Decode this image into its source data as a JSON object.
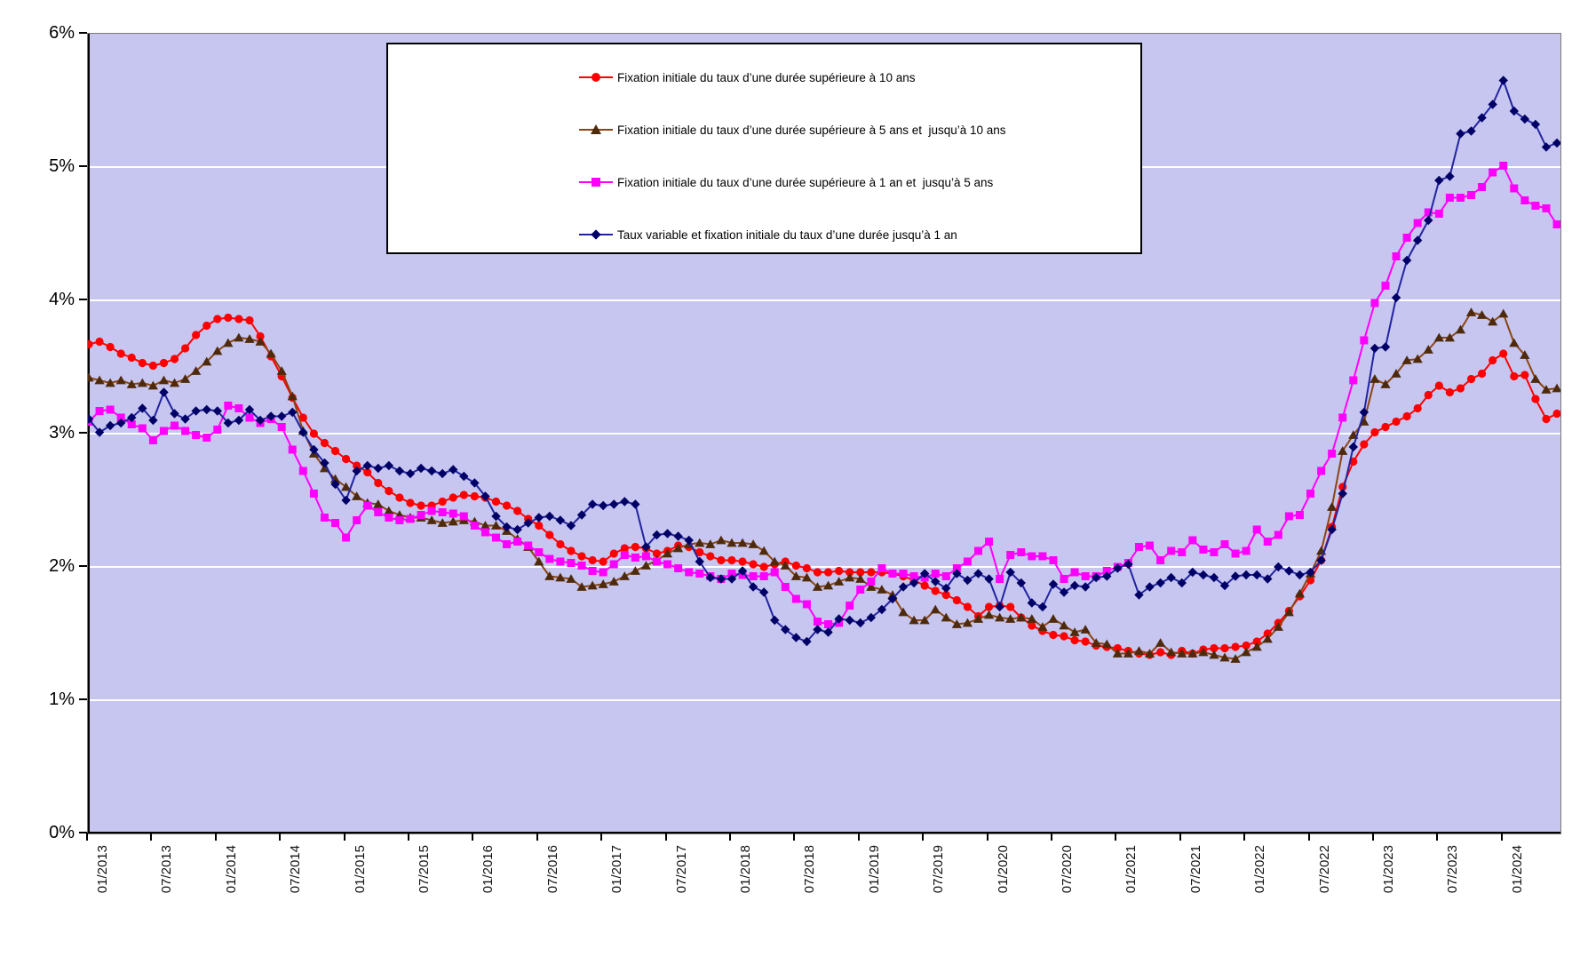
{
  "figure": {
    "background": "#FFFFFF"
  },
  "plot": {
    "background": "#C6C6F0",
    "border_color": "#7A7A7A",
    "axis_color": "#000000",
    "gridline_color": "#FFFFFF"
  },
  "chart_data": {
    "type": "line",
    "title": "",
    "xlabel": "",
    "ylabel": "",
    "x_frequency": "monthly",
    "x_start": "01/2013",
    "x_end": "06/2024",
    "x_tick_labels": [
      "01/2013",
      "07/2013",
      "01/2014",
      "07/2014",
      "01/2015",
      "07/2015",
      "01/2016",
      "07/2016",
      "01/2017",
      "07/2017",
      "01/2018",
      "07/2018",
      "01/2019",
      "07/2019",
      "01/2020",
      "07/2020",
      "01/2021",
      "07/2021",
      "01/2022",
      "07/2022",
      "01/2023",
      "07/2023",
      "01/2024"
    ],
    "y_tick_labels": [
      "6%",
      "5%",
      "4%",
      "3%",
      "2%",
      "1%",
      "0%"
    ],
    "ylim": [
      0,
      6
    ],
    "grid": "horizontal white gridlines at each 1%",
    "legend_position": "floating top-center, white box with black border",
    "series": [
      {
        "name": "Fixation initiale du taux d’une durée supérieure à 10 ans",
        "color": "#FF0000",
        "marker_color": "#FF0000",
        "marker": "circle",
        "values": [
          3.67,
          3.69,
          3.65,
          3.6,
          3.57,
          3.53,
          3.51,
          3.53,
          3.56,
          3.64,
          3.74,
          3.81,
          3.86,
          3.87,
          3.86,
          3.85,
          3.73,
          3.58,
          3.43,
          3.27,
          3.12,
          3.0,
          2.93,
          2.87,
          2.81,
          2.76,
          2.71,
          2.63,
          2.57,
          2.52,
          2.48,
          2.46,
          2.46,
          2.49,
          2.52,
          2.54,
          2.53,
          2.52,
          2.49,
          2.46,
          2.42,
          2.36,
          2.31,
          2.24,
          2.17,
          2.12,
          2.08,
          2.05,
          2.04,
          2.1,
          2.14,
          2.15,
          2.14,
          2.1,
          2.12,
          2.16,
          2.15,
          2.11,
          2.08,
          2.05,
          2.05,
          2.04,
          2.02,
          2.0,
          2.02,
          2.04,
          2.01,
          1.99,
          1.96,
          1.96,
          1.97,
          1.96,
          1.96,
          1.96,
          1.96,
          1.95,
          1.93,
          1.9,
          1.86,
          1.82,
          1.79,
          1.75,
          1.7,
          1.63,
          1.7,
          1.71,
          1.7,
          1.62,
          1.56,
          1.52,
          1.49,
          1.48,
          1.45,
          1.44,
          1.41,
          1.4,
          1.39,
          1.37,
          1.35,
          1.34,
          1.36,
          1.34,
          1.37,
          1.35,
          1.38,
          1.39,
          1.39,
          1.4,
          1.41,
          1.44,
          1.5,
          1.58,
          1.67,
          1.78,
          1.9,
          2.05,
          2.3,
          2.6,
          2.79,
          2.92,
          3.01,
          3.05,
          3.09,
          3.13,
          3.19,
          3.29,
          3.36,
          3.31,
          3.34,
          3.41,
          3.45,
          3.55,
          3.6,
          3.43,
          3.44,
          3.26,
          3.11,
          3.15
        ]
      },
      {
        "name": "Fixation initiale du taux d’une durée supérieure à 5 ans et  jusqu’à 10 ans",
        "color": "#8B4513",
        "marker_color": "#4E2A0C",
        "marker": "triangle",
        "values": [
          3.42,
          3.4,
          3.38,
          3.4,
          3.37,
          3.38,
          3.36,
          3.4,
          3.38,
          3.41,
          3.47,
          3.54,
          3.62,
          3.68,
          3.72,
          3.71,
          3.69,
          3.6,
          3.47,
          3.28,
          3.02,
          2.85,
          2.74,
          2.66,
          2.6,
          2.53,
          2.48,
          2.47,
          2.42,
          2.39,
          2.37,
          2.37,
          2.35,
          2.33,
          2.34,
          2.35,
          2.34,
          2.31,
          2.31,
          2.27,
          2.21,
          2.15,
          2.04,
          1.93,
          1.92,
          1.91,
          1.85,
          1.86,
          1.87,
          1.89,
          1.93,
          1.97,
          2.01,
          2.05,
          2.1,
          2.14,
          2.17,
          2.18,
          2.17,
          2.2,
          2.18,
          2.18,
          2.17,
          2.12,
          2.04,
          2.01,
          1.93,
          1.92,
          1.85,
          1.86,
          1.89,
          1.92,
          1.91,
          1.85,
          1.83,
          1.79,
          1.66,
          1.6,
          1.6,
          1.68,
          1.62,
          1.57,
          1.58,
          1.61,
          1.64,
          1.62,
          1.61,
          1.62,
          1.61,
          1.55,
          1.61,
          1.56,
          1.51,
          1.53,
          1.43,
          1.42,
          1.35,
          1.35,
          1.37,
          1.35,
          1.43,
          1.36,
          1.35,
          1.35,
          1.36,
          1.34,
          1.32,
          1.31,
          1.36,
          1.4,
          1.46,
          1.55,
          1.66,
          1.8,
          1.95,
          2.12,
          2.45,
          2.87,
          2.99,
          3.09,
          3.41,
          3.37,
          3.45,
          3.55,
          3.56,
          3.63,
          3.72,
          3.72,
          3.78,
          3.91,
          3.89,
          3.84,
          3.9,
          3.68,
          3.59,
          3.41,
          3.33,
          3.34
        ]
      },
      {
        "name": "Fixation initiale du taux d’une durée supérieure à 1 an et  jusqu’à 5 ans",
        "color": "#FF00FF",
        "marker_color": "#FF00FF",
        "marker": "square",
        "values": [
          3.09,
          3.17,
          3.18,
          3.12,
          3.07,
          3.04,
          2.95,
          3.02,
          3.06,
          3.02,
          2.99,
          2.97,
          3.03,
          3.21,
          3.19,
          3.12,
          3.08,
          3.11,
          3.05,
          2.88,
          2.72,
          2.55,
          2.37,
          2.33,
          2.22,
          2.35,
          2.46,
          2.41,
          2.37,
          2.35,
          2.36,
          2.39,
          2.42,
          2.41,
          2.4,
          2.38,
          2.31,
          2.26,
          2.22,
          2.17,
          2.19,
          2.16,
          2.11,
          2.06,
          2.04,
          2.03,
          2.01,
          1.97,
          1.96,
          2.02,
          2.09,
          2.07,
          2.08,
          2.04,
          2.02,
          1.99,
          1.96,
          1.95,
          1.93,
          1.91,
          1.95,
          1.94,
          1.93,
          1.93,
          1.96,
          1.85,
          1.76,
          1.72,
          1.59,
          1.57,
          1.58,
          1.71,
          1.83,
          1.89,
          1.99,
          1.95,
          1.95,
          1.93,
          1.92,
          1.95,
          1.93,
          1.99,
          2.04,
          2.12,
          2.19,
          1.91,
          2.09,
          2.11,
          2.08,
          2.08,
          2.05,
          1.91,
          1.96,
          1.93,
          1.93,
          1.97,
          2.0,
          2.03,
          2.15,
          2.16,
          2.05,
          2.12,
          2.11,
          2.2,
          2.13,
          2.11,
          2.17,
          2.1,
          2.12,
          2.28,
          2.19,
          2.24,
          2.38,
          2.39,
          2.55,
          2.72,
          2.85,
          3.12,
          3.4,
          3.7,
          3.98,
          4.11,
          4.33,
          4.47,
          4.58,
          4.66,
          4.65,
          4.77,
          4.77,
          4.79,
          4.85,
          4.96,
          5.01,
          4.84,
          4.75,
          4.71,
          4.69,
          4.57
        ]
      },
      {
        "name": "Taux variable et fixation initiale du taux d’une durée jusqu’à 1 an",
        "color": "#2323A0",
        "marker_color": "#000066",
        "marker": "diamond",
        "values": [
          3.11,
          3.01,
          3.06,
          3.08,
          3.12,
          3.19,
          3.1,
          3.31,
          3.15,
          3.11,
          3.17,
          3.18,
          3.17,
          3.08,
          3.1,
          3.18,
          3.1,
          3.13,
          3.13,
          3.16,
          3.01,
          2.88,
          2.78,
          2.62,
          2.5,
          2.72,
          2.76,
          2.74,
          2.76,
          2.72,
          2.7,
          2.74,
          2.72,
          2.7,
          2.73,
          2.68,
          2.63,
          2.53,
          2.38,
          2.3,
          2.28,
          2.33,
          2.37,
          2.38,
          2.35,
          2.31,
          2.39,
          2.47,
          2.46,
          2.47,
          2.49,
          2.47,
          2.15,
          2.24,
          2.25,
          2.23,
          2.2,
          2.04,
          1.92,
          1.91,
          1.91,
          1.97,
          1.85,
          1.81,
          1.6,
          1.53,
          1.47,
          1.44,
          1.53,
          1.51,
          1.61,
          1.6,
          1.58,
          1.62,
          1.68,
          1.76,
          1.85,
          1.88,
          1.95,
          1.89,
          1.84,
          1.95,
          1.9,
          1.95,
          1.91,
          1.7,
          1.96,
          1.88,
          1.73,
          1.7,
          1.87,
          1.81,
          1.86,
          1.85,
          1.92,
          1.93,
          1.99,
          2.02,
          1.79,
          1.85,
          1.88,
          1.92,
          1.88,
          1.96,
          1.94,
          1.92,
          1.86,
          1.93,
          1.94,
          1.94,
          1.91,
          2.0,
          1.97,
          1.94,
          1.96,
          2.05,
          2.28,
          2.55,
          2.9,
          3.16,
          3.64,
          3.65,
          4.02,
          4.3,
          4.45,
          4.6,
          4.9,
          4.93,
          5.25,
          5.27,
          5.37,
          5.47,
          5.65,
          5.42,
          5.36,
          5.32,
          5.15,
          5.18
        ]
      }
    ]
  }
}
